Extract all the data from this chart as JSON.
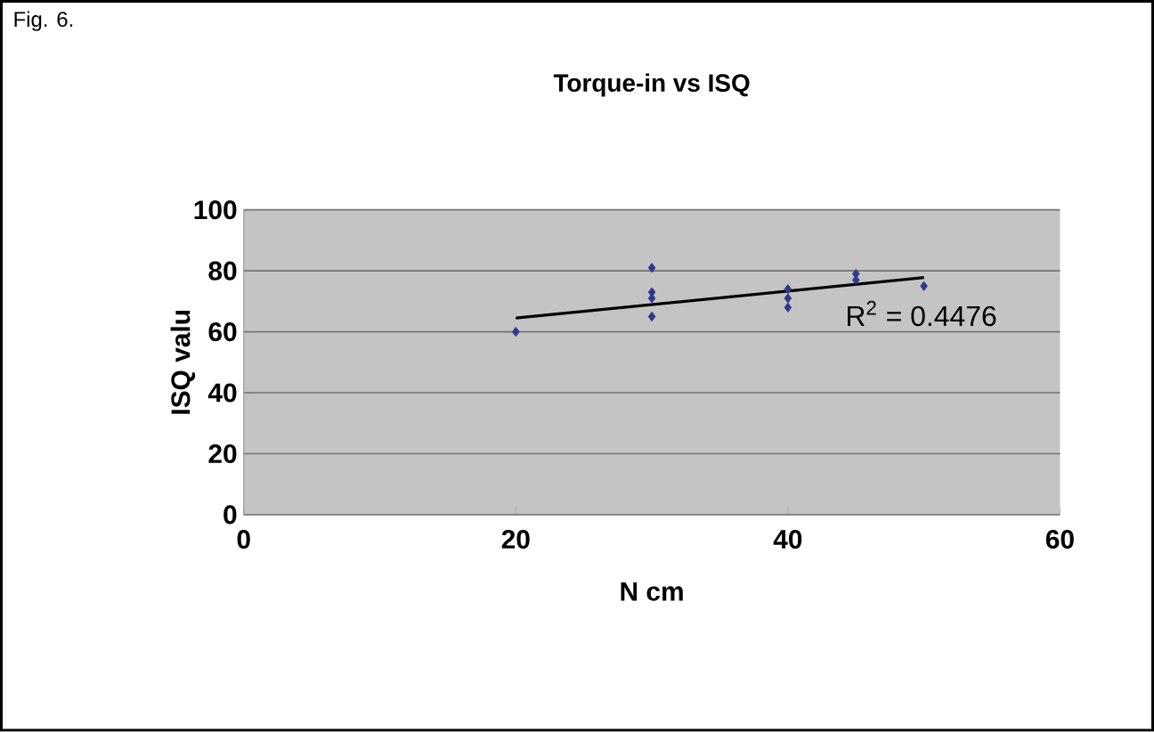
{
  "chart_data": {
    "type": "scatter",
    "title": "Torque-in vs ISQ",
    "xlabel": "N cm",
    "ylabel": "ISQ valu",
    "series": [
      {
        "type": "scatter",
        "color": "#2e3a8c",
        "marker": "diamond",
        "x": [
          20,
          30,
          30,
          30,
          30,
          40,
          40,
          40,
          45,
          45,
          50
        ],
        "values": [
          60,
          81,
          73,
          71,
          65,
          74,
          71,
          68,
          79,
          77,
          75
        ]
      },
      {
        "type": "line",
        "color": "#000000",
        "marker": "none",
        "x": [
          20,
          50
        ],
        "values": [
          64.5,
          77.8
        ]
      }
    ],
    "xlim": [
      0,
      60
    ],
    "xticks": [
      0,
      20,
      40,
      60
    ],
    "ylim": [
      0,
      100
    ],
    "yticks": [
      0,
      20,
      40,
      60,
      80,
      100
    ],
    "grid": "y",
    "annotations": [
      "Fig. 6.",
      "R$^{2}$ = 0.4476"
    ]
  }
}
